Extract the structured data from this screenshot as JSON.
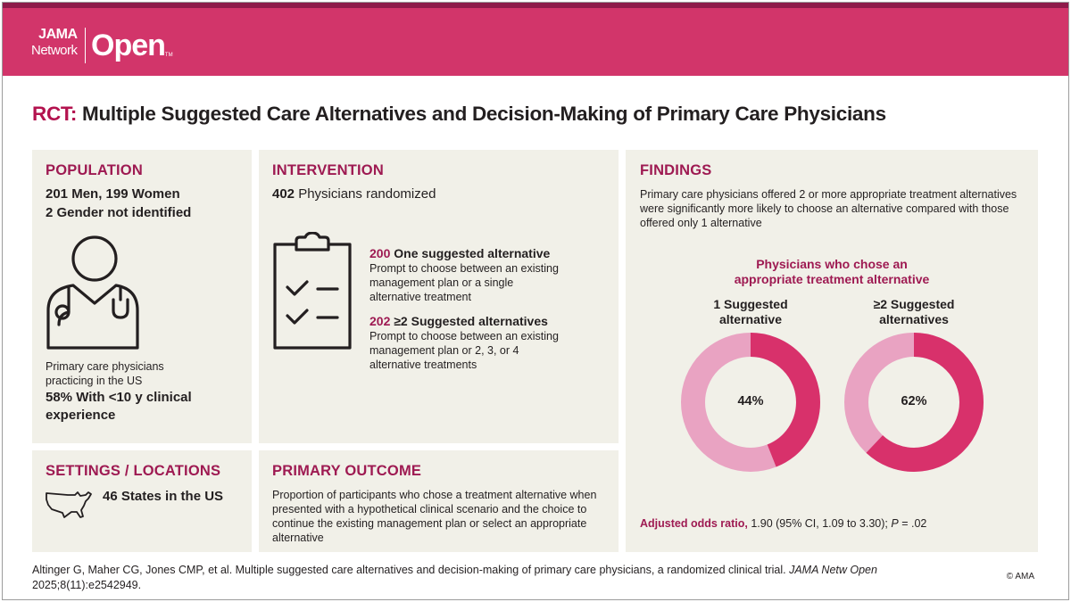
{
  "brand": {
    "line1": "JAMA",
    "line2": "Network",
    "name": "Open",
    "tm": "TM"
  },
  "title": {
    "prefix": "RCT:",
    "text": "Multiple Suggested Care Alternatives and Decision-Making of Primary Care Physicians"
  },
  "population": {
    "heading": "POPULATION",
    "line1": "201 Men, 199 Women",
    "line2": "2 Gender not identified",
    "icon": "physician-icon",
    "desc1": "Primary care physicians",
    "desc2": "practicing in the US",
    "stat1": "58% With <10 y clinical",
    "stat2": "experience"
  },
  "intervention": {
    "heading": "INTERVENTION",
    "count": "402",
    "count_text": "Physicians randomized",
    "icon": "clipboard-checklist-icon",
    "arm1": {
      "n": "200",
      "label": "One suggested alternative",
      "d1": "Prompt to choose between an existing",
      "d2": "management plan or a single",
      "d3": "alternative treatment"
    },
    "arm2": {
      "n": "202",
      "label": "≥2 Suggested alternatives",
      "d1": "Prompt to choose between an existing",
      "d2": "management plan or 2, 3, or 4",
      "d3": "alternative treatments"
    }
  },
  "settings": {
    "heading": "SETTINGS / LOCATIONS",
    "icon": "us-map-icon",
    "text": "46 States in the US"
  },
  "outcome": {
    "heading": "PRIMARY OUTCOME",
    "l1": "Proportion of participants who chose a treatment alternative when",
    "l2": "presented with a hypothetical clinical scenario and the choice to",
    "l3": "continue the existing management plan or select an appropriate",
    "l4": "alternative"
  },
  "findings": {
    "heading": "FINDINGS",
    "l1": "Primary care physicians offered 2 or more appropriate treatment alternatives",
    "l2": "were significantly more likely to choose an alternative compared with those",
    "l3": "offered only 1 alternative",
    "chart_title1": "Physicians who chose an",
    "chart_title2": "appropriate treatment alternative",
    "odds_label": "Adjusted odds ratio,",
    "odds_value": "1.90 (95% CI, 1.09 to 3.30);",
    "p_label": "P",
    "p_value": "= .02"
  },
  "chart_data": {
    "type": "pie",
    "title": "Physicians who chose an appropriate treatment alternative",
    "categories": [
      "1 Suggested alternative",
      "≥2 Suggested alternatives"
    ],
    "values": [
      44,
      62
    ],
    "labels": [
      "44%",
      "62%"
    ],
    "cat1_l1": "1 Suggested",
    "cat1_l2": "alternative",
    "cat2_l1": "≥2 Suggested",
    "cat2_l2": "alternatives",
    "colors": {
      "chose": "#d8316b",
      "rest": "#e9a3c2"
    }
  },
  "citation": {
    "text": "Altinger G, Maher CG, Jones CMP, et al. Multiple suggested care alternatives and decision-making of primary care physicians, a randomized clinical trial.",
    "journal": "JAMA Netw Open",
    "ref": "2025;8(11):e2542949."
  },
  "copyright": "© AMA"
}
